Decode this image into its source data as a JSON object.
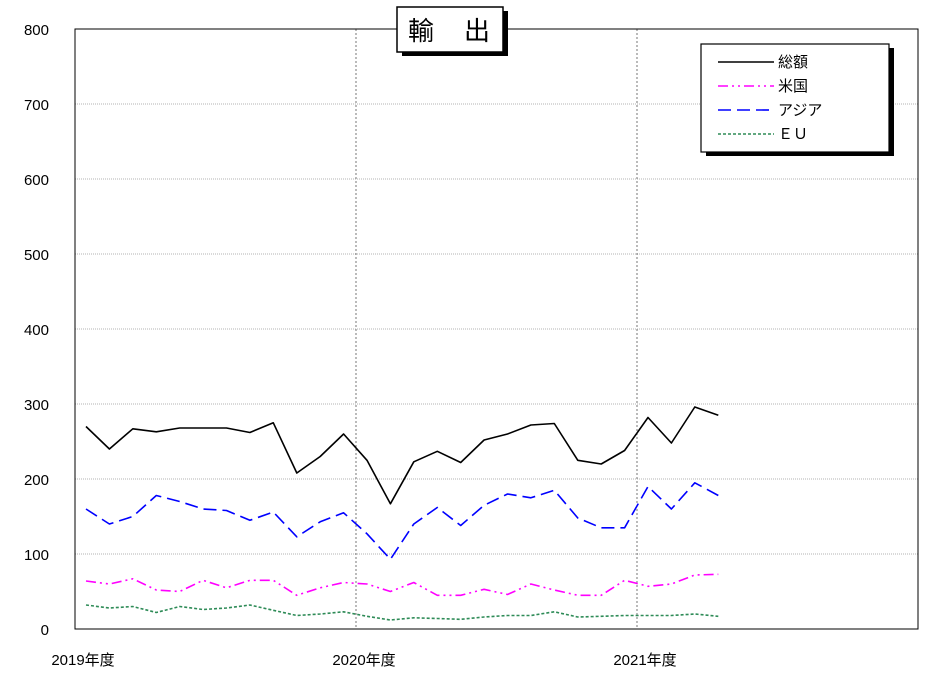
{
  "chart_data": {
    "type": "line",
    "title": "輸　出",
    "xlabel": "",
    "ylabel": "",
    "ylim": [
      0,
      800
    ],
    "yticks": [
      0,
      100,
      200,
      300,
      400,
      500,
      600,
      700,
      800
    ],
    "x_tick_labels": [
      {
        "index": 0,
        "label": "2019年度"
      },
      {
        "index": 12,
        "label": "2020年度"
      },
      {
        "index": 24,
        "label": "2021年度"
      }
    ],
    "x_count": 36,
    "grid": true,
    "legend_position": "top-right",
    "series": [
      {
        "name": "総額",
        "color": "#000000",
        "dash": "",
        "values": [
          270,
          240,
          267,
          263,
          268,
          268,
          268,
          262,
          275,
          208,
          230,
          260,
          225,
          167,
          223,
          237,
          222,
          252,
          260,
          272,
          274,
          225,
          220,
          238,
          282,
          248,
          296,
          285
        ]
      },
      {
        "name": "米国",
        "color": "#ff00ff",
        "dash": "10,4,2,4,2,4",
        "values": [
          64,
          60,
          67,
          52,
          50,
          65,
          55,
          65,
          65,
          45,
          55,
          62,
          60,
          50,
          62,
          45,
          45,
          53,
          46,
          60,
          52,
          45,
          45,
          65,
          57,
          60,
          72,
          73
        ]
      },
      {
        "name": "アジア",
        "color": "#0000ff",
        "dash": "13,6",
        "values": [
          160,
          140,
          150,
          178,
          170,
          160,
          158,
          145,
          156,
          123,
          143,
          155,
          127,
          93,
          140,
          162,
          138,
          165,
          180,
          175,
          185,
          148,
          135,
          135,
          190,
          160,
          195,
          178
        ]
      },
      {
        "name": "ＥＵ",
        "color": "#2e8b57",
        "dash": "3,2",
        "values": [
          32,
          28,
          30,
          22,
          30,
          26,
          28,
          32,
          25,
          18,
          20,
          23,
          17,
          12,
          15,
          14,
          13,
          16,
          18,
          18,
          23,
          16,
          17,
          18,
          18,
          18,
          20,
          17
        ]
      }
    ]
  }
}
